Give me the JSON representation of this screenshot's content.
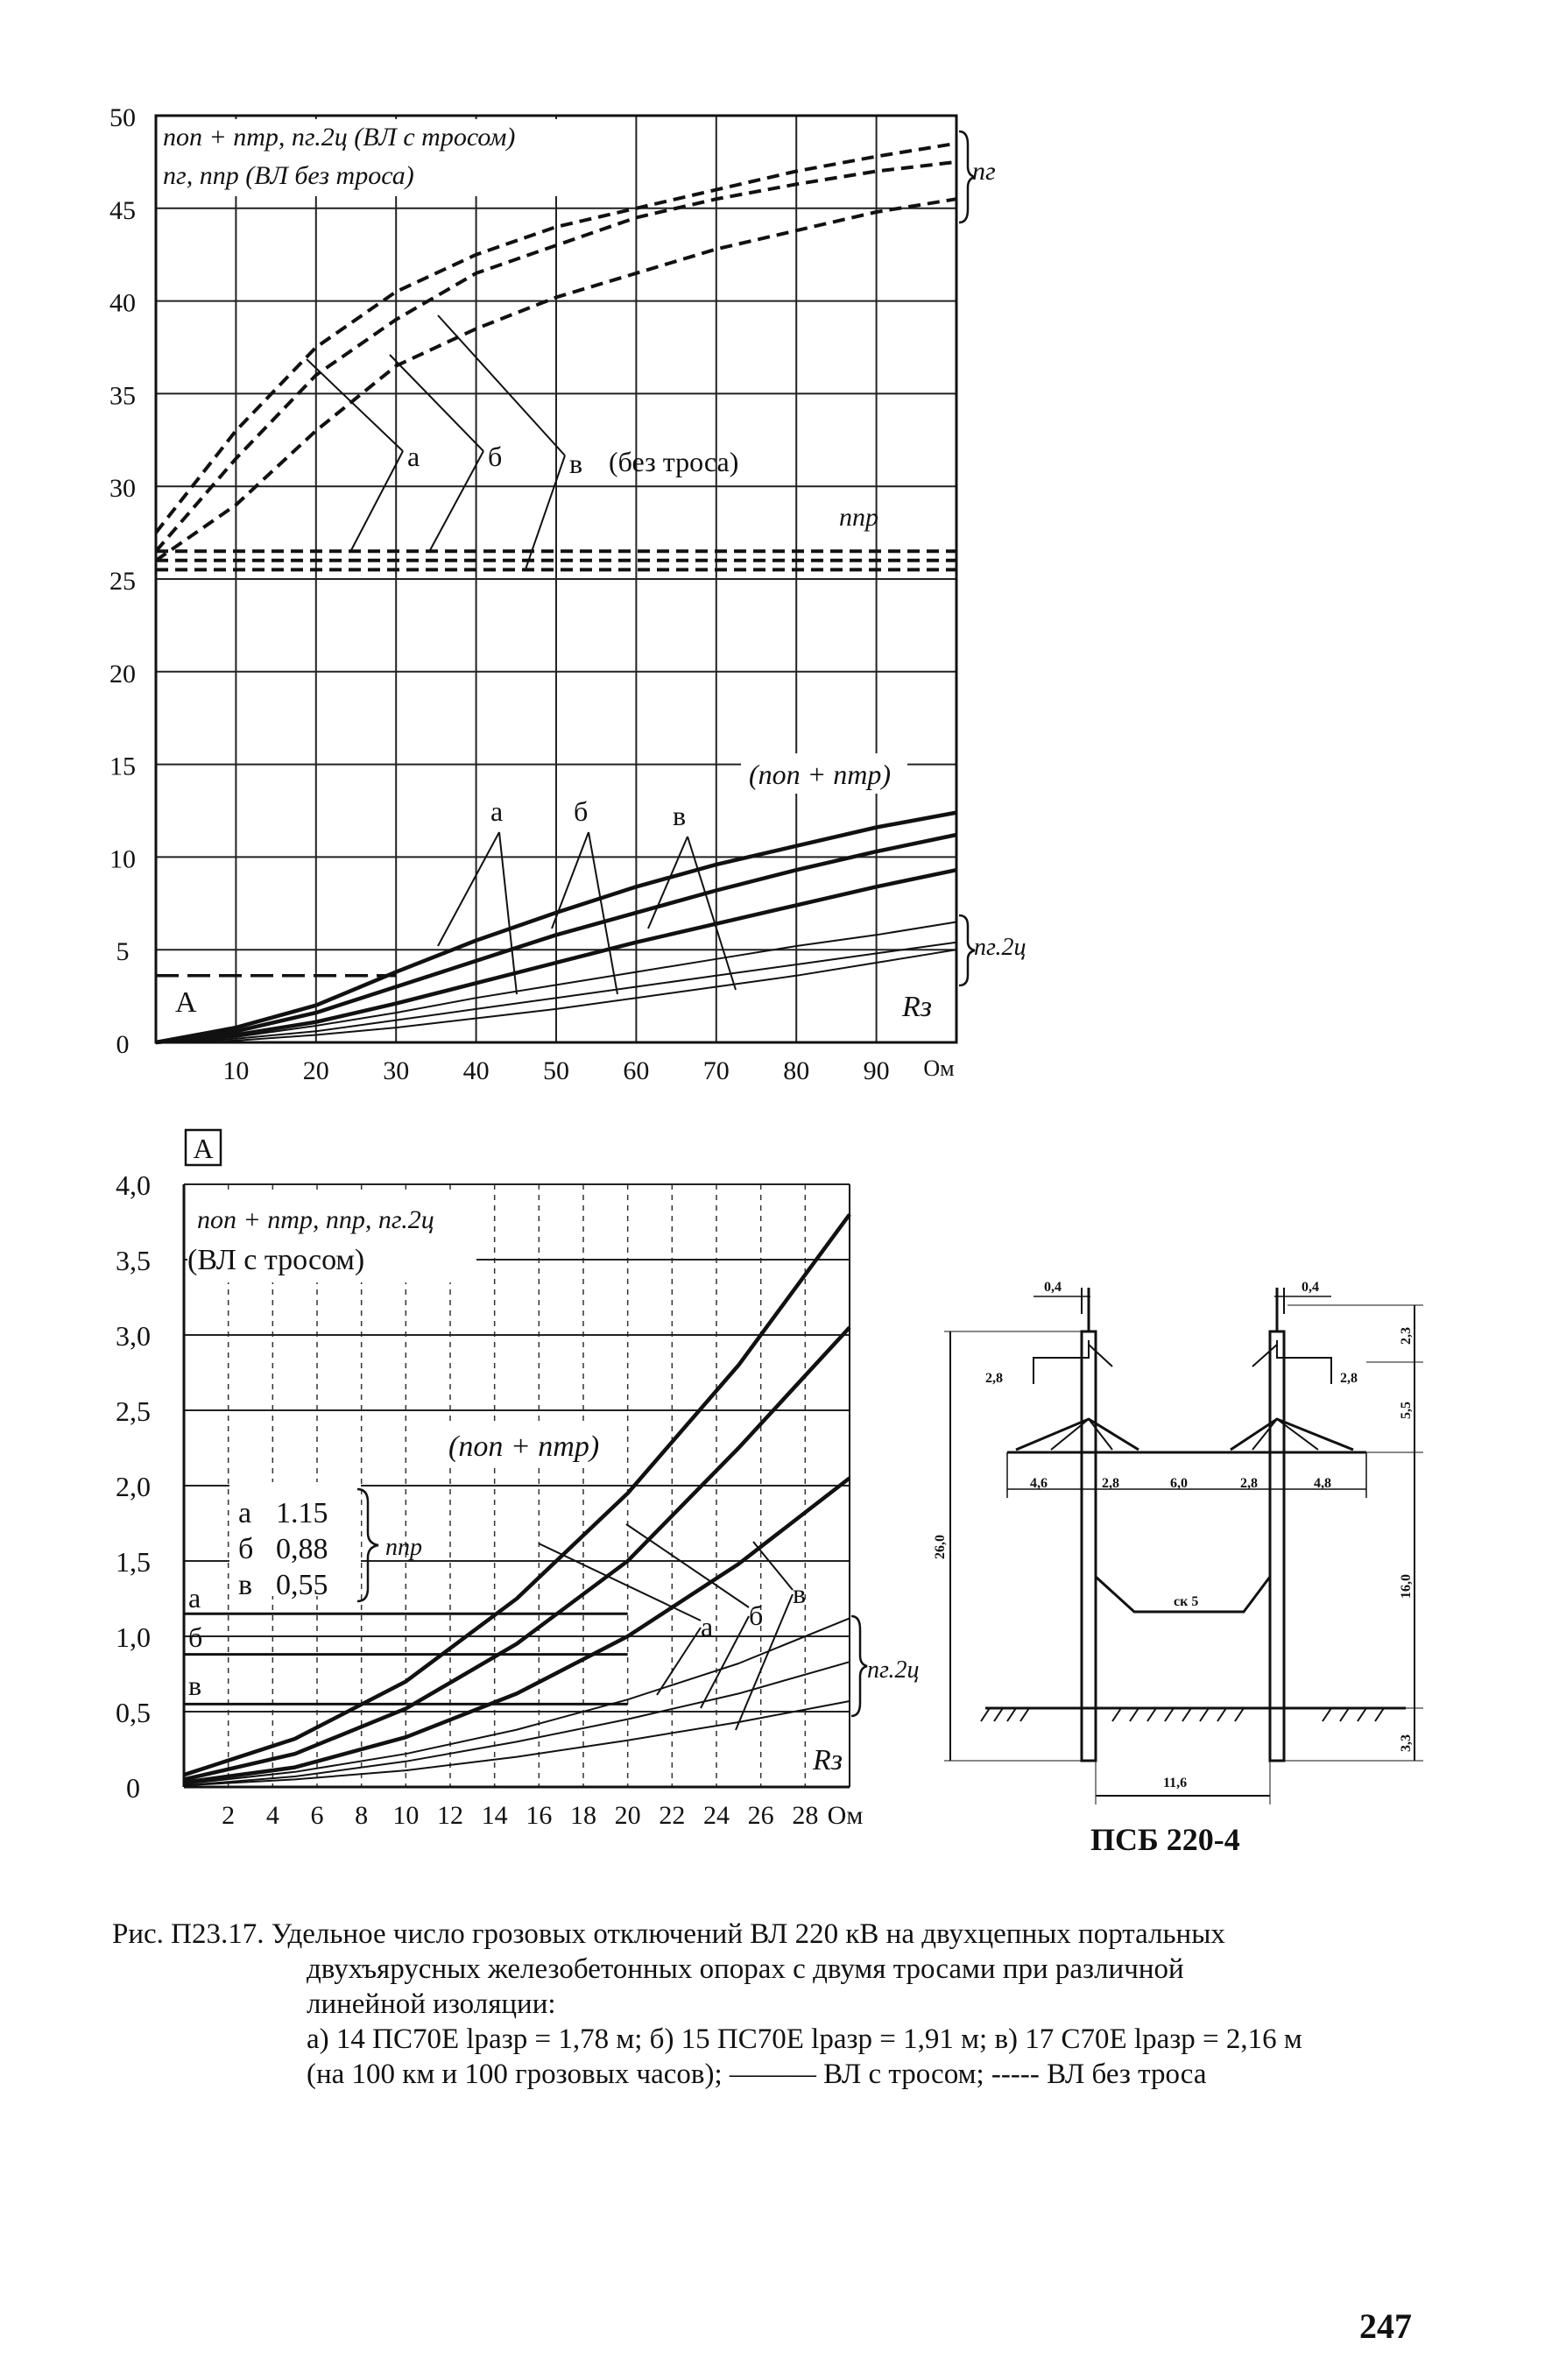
{
  "chart_data": [
    {
      "type": "line",
      "xlim": [
        0,
        100
      ],
      "ylim": [
        0,
        50
      ],
      "x_ticks": [
        "10",
        "20",
        "30",
        "40",
        "50",
        "60",
        "70",
        "80",
        "90"
      ],
      "x_unit": "Ом",
      "y_ticks": [
        "0",
        "5",
        "10",
        "15",
        "20",
        "25",
        "30",
        "35",
        "40",
        "45",
        "50"
      ],
      "legend": [
        "nоп + nтр, nг.2ц (ВЛ с тросом)",
        "nг, nпр (ВЛ без троса)"
      ],
      "annotations": {
        "ng": "nг",
        "npr": "nпр",
        "no_cable": "(без троса)",
        "nop_ntr": "(nоп + nтр)",
        "ng2c": "nг.2ц",
        "A": "A",
        "Rz": "Rз",
        "a": "а",
        "b": "б",
        "v": "в"
      },
      "grid": true,
      "series": [
        {
          "name": "nг а",
          "style": "dashed",
          "x": [
            0,
            10,
            20,
            30,
            40,
            50,
            60,
            70,
            80,
            90,
            100
          ],
          "y": [
            27.5,
            33,
            37.5,
            40.5,
            42.5,
            44,
            45,
            46,
            47,
            47.8,
            48.5
          ]
        },
        {
          "name": "nг б",
          "style": "dashed",
          "x": [
            0,
            10,
            20,
            30,
            40,
            50,
            60,
            70,
            80,
            90,
            100
          ],
          "y": [
            26.5,
            31.5,
            36,
            39,
            41.5,
            43,
            44.5,
            45.5,
            46.3,
            47,
            47.5
          ]
        },
        {
          "name": "nг в",
          "style": "dashed",
          "x": [
            0,
            10,
            20,
            30,
            40,
            50,
            60,
            70,
            80,
            90,
            100
          ],
          "y": [
            26,
            29,
            33,
            36.5,
            38.5,
            40.2,
            41.5,
            42.8,
            43.8,
            44.8,
            45.5
          ]
        },
        {
          "name": "nпр а",
          "style": "dashed",
          "x": [
            0,
            100
          ],
          "y": [
            26.5,
            26.5
          ]
        },
        {
          "name": "nпр б",
          "style": "dashed",
          "x": [
            0,
            100
          ],
          "y": [
            26.0,
            26.0
          ]
        },
        {
          "name": "nпр в",
          "style": "dashed",
          "x": [
            0,
            100
          ],
          "y": [
            25.5,
            25.5
          ]
        },
        {
          "name": "nоп+nтр а",
          "style": "solid-thick",
          "x": [
            0,
            10,
            20,
            30,
            40,
            50,
            60,
            70,
            80,
            90,
            100
          ],
          "y": [
            0,
            0.8,
            2,
            3.8,
            5.5,
            7,
            8.4,
            9.6,
            10.6,
            11.6,
            12.4
          ]
        },
        {
          "name": "nоп+nтр б",
          "style": "solid-thick",
          "x": [
            0,
            10,
            20,
            30,
            40,
            50,
            60,
            70,
            80,
            90,
            100
          ],
          "y": [
            0,
            0.6,
            1.6,
            3,
            4.4,
            5.8,
            7,
            8.2,
            9.3,
            10.3,
            11.2
          ]
        },
        {
          "name": "nоп+nтр в",
          "style": "solid-thick",
          "x": [
            0,
            10,
            20,
            30,
            40,
            50,
            60,
            70,
            80,
            90,
            100
          ],
          "y": [
            0,
            0.4,
            1.1,
            2.1,
            3.2,
            4.3,
            5.4,
            6.4,
            7.4,
            8.4,
            9.3
          ]
        },
        {
          "name": "nг.2ц а",
          "style": "solid-thin",
          "x": [
            0,
            10,
            20,
            30,
            40,
            50,
            60,
            70,
            80,
            90,
            100
          ],
          "y": [
            0,
            0.3,
            0.9,
            1.6,
            2.4,
            3.1,
            3.8,
            4.5,
            5.2,
            5.8,
            6.5
          ]
        },
        {
          "name": "nг.2ц б",
          "style": "solid-thin",
          "x": [
            0,
            10,
            20,
            30,
            40,
            50,
            60,
            70,
            80,
            90,
            100
          ],
          "y": [
            0,
            0.2,
            0.6,
            1.2,
            1.8,
            2.4,
            3.0,
            3.6,
            4.2,
            4.8,
            5.4
          ]
        },
        {
          "name": "nг.2ц в",
          "style": "solid-thin",
          "x": [
            0,
            10,
            20,
            30,
            40,
            50,
            60,
            70,
            80,
            90,
            100
          ],
          "y": [
            0,
            0.1,
            0.4,
            0.8,
            1.3,
            1.8,
            2.4,
            3.0,
            3.6,
            4.3,
            5.0
          ]
        },
        {
          "name": "A",
          "style": "long-dash",
          "x": [
            0,
            30
          ],
          "y": [
            3.6,
            3.6
          ]
        }
      ]
    },
    {
      "type": "line",
      "xlim": [
        0,
        30
      ],
      "ylim": [
        0,
        4.0
      ],
      "x_ticks": [
        "2",
        "4",
        "6",
        "8",
        "10",
        "12",
        "14",
        "16",
        "18",
        "20",
        "22",
        "24",
        "26",
        "28"
      ],
      "x_unit": "Ом",
      "y_ticks": [
        "0",
        "0,5",
        "1,0",
        "1,5",
        "2,0",
        "2,5",
        "3,0",
        "3,5",
        "4,0"
      ],
      "inset_tag": "A",
      "legend": [
        "nоп + nтр, nпр, nг.2ц",
        "(ВЛ с тросом)"
      ],
      "npr_values": [
        {
          "label": "а",
          "value": "1.15"
        },
        {
          "label": "б",
          "value": "0,88"
        },
        {
          "label": "в",
          "value": "0,55"
        }
      ],
      "annotations": {
        "npr": "nпр",
        "nop_ntr": "(nоп + nтр)",
        "ng2c": "nг.2ц",
        "Rz": "Rз",
        "a": "а",
        "b": "б",
        "v": "в"
      },
      "grid": true,
      "series": [
        {
          "name": "nоп+nтр а",
          "style": "solid-thick",
          "x": [
            0,
            5,
            10,
            15,
            20,
            25,
            30
          ],
          "y": [
            0.08,
            0.32,
            0.7,
            1.25,
            1.95,
            2.8,
            3.8
          ]
        },
        {
          "name": "nоп+nтр б",
          "style": "solid-thick",
          "x": [
            0,
            5,
            10,
            15,
            20,
            25,
            30
          ],
          "y": [
            0.05,
            0.22,
            0.52,
            0.95,
            1.5,
            2.25,
            3.05
          ]
        },
        {
          "name": "nоп+nтр в",
          "style": "solid-thick",
          "x": [
            0,
            5,
            10,
            15,
            20,
            25,
            30
          ],
          "y": [
            0.03,
            0.13,
            0.33,
            0.62,
            1.0,
            1.48,
            2.05
          ]
        },
        {
          "name": "nпр а",
          "style": "solid",
          "x": [
            0,
            20
          ],
          "y": [
            1.15,
            1.15
          ]
        },
        {
          "name": "nпр б",
          "style": "solid",
          "x": [
            0,
            20
          ],
          "y": [
            0.88,
            0.88
          ]
        },
        {
          "name": "nпр в",
          "style": "solid",
          "x": [
            0,
            20
          ],
          "y": [
            0.55,
            0.55
          ]
        },
        {
          "name": "nг.2ц а",
          "style": "solid-thin",
          "x": [
            0,
            5,
            10,
            15,
            20,
            25,
            30
          ],
          "y": [
            0.02,
            0.1,
            0.22,
            0.38,
            0.58,
            0.82,
            1.12
          ]
        },
        {
          "name": "nг.2ц б",
          "style": "solid-thin",
          "x": [
            0,
            5,
            10,
            15,
            20,
            25,
            30
          ],
          "y": [
            0.01,
            0.07,
            0.17,
            0.3,
            0.45,
            0.62,
            0.83
          ]
        },
        {
          "name": "nг.2ц в",
          "style": "solid-thin",
          "x": [
            0,
            5,
            10,
            15,
            20,
            25,
            30
          ],
          "y": [
            0.01,
            0.05,
            0.11,
            0.2,
            0.31,
            0.43,
            0.57
          ]
        }
      ]
    }
  ],
  "tower": {
    "title": "ПСБ 220-4",
    "dims": {
      "top_left": "0,4",
      "top_right": "0,4",
      "h_top": "2,3",
      "h_mid": "5,5",
      "h_main": "16,0",
      "h_ground": "3,3",
      "total": "26,0",
      "arm_left": "2,8",
      "arm_right": "2,8",
      "seg1": "4,6",
      "seg2": "2,8",
      "seg3": "6,0",
      "seg4": "2,8",
      "seg5": "4,8",
      "brace": "ск 5",
      "base": "11,6"
    }
  },
  "caption": {
    "line1": "Рис. П23.17. Удельное число грозовых отключений ВЛ 220 кВ на двухцепных портальных",
    "line2": "двухъярусных железобетонных опорах с двумя тросами при различной",
    "line3": "линейной изоляции:",
    "line4": "а) 14 ПС70Е lразр = 1,78 м; б) 15 ПС70Е lразр = 1,91 м; в) 17 С70Е lразр = 2,16 м",
    "line5": "(на 100 км и 100 грозовых часов); ——— ВЛ с тросом; ----- ВЛ без троса"
  },
  "page_number": "247"
}
